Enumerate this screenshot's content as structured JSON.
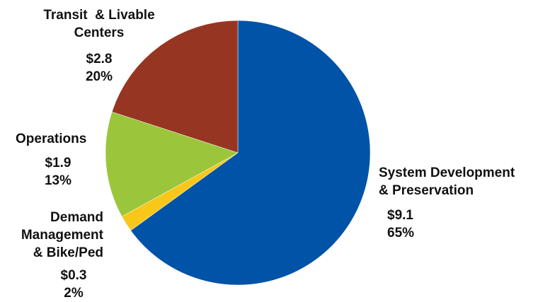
{
  "chart_data": {
    "type": "pie",
    "start_angle_deg": 0,
    "direction": "clockwise",
    "slices": [
      {
        "name_lines": [
          "System Development",
          "& Preservation"
        ],
        "value": 9.1,
        "value_label": "$9.1",
        "percent": 65,
        "percent_label": "65%",
        "color": "#0053A6"
      },
      {
        "name_lines": [
          "Demand",
          "Management",
          "& Bike/Ped"
        ],
        "value": 0.3,
        "value_label": "$0.3",
        "percent": 2,
        "percent_label": "2%",
        "color": "#F7C81A"
      },
      {
        "name_lines": [
          "Operations"
        ],
        "value": 1.9,
        "value_label": "$1.9",
        "percent": 13,
        "percent_label": "13%",
        "color": "#9BC63C"
      },
      {
        "name_lines": [
          "Transit  & Livable",
          "Centers"
        ],
        "value": 2.8,
        "value_label": "$2.8",
        "percent": 20,
        "percent_label": "20%",
        "color": "#963622"
      }
    ]
  }
}
